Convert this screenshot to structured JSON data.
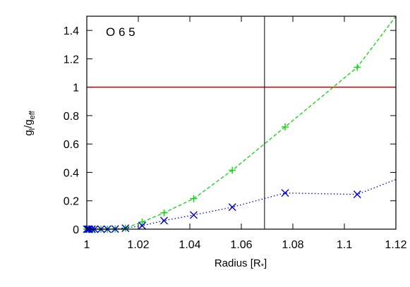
{
  "chart_data": {
    "type": "line",
    "annotation": "O 6 5",
    "xlabel": {
      "main": "Radius [R",
      "sub": "*",
      "close": "]"
    },
    "ylabel": {
      "g": "g",
      "sub1": "l",
      "slash": "/g",
      "sub2": "eff"
    },
    "xlim": [
      1.0,
      1.12
    ],
    "ylim": [
      0,
      1.5
    ],
    "x_ticks": [
      1.0,
      1.02,
      1.04,
      1.06,
      1.08,
      1.1,
      1.12
    ],
    "x_tick_labels": [
      "1",
      "1.02",
      "1.04",
      "1.06",
      "1.08",
      "1.1",
      "1.12"
    ],
    "y_ticks": [
      0,
      0.2,
      0.4,
      0.6,
      0.8,
      1.0,
      1.2,
      1.4
    ],
    "y_tick_labels": [
      "0",
      "0.2",
      "0.4",
      "0.6",
      "0.8",
      "1",
      "1.2",
      "1.4"
    ],
    "grid": false,
    "hlines": [
      {
        "y": 1.0,
        "color": "#cc0000"
      }
    ],
    "vlines": [
      {
        "x": 1.069,
        "color": "#000000"
      }
    ],
    "series": [
      {
        "color": "#00dd00",
        "marker": "plus",
        "linestyle": "dashed",
        "x": [
          1.0,
          1.0005,
          1.001,
          1.002,
          1.003,
          1.0055,
          1.008,
          1.011,
          1.015,
          1.0215,
          1.03,
          1.0415,
          1.0565,
          1.077,
          1.105
        ],
        "y": [
          0,
          0,
          0,
          0,
          0,
          0,
          0,
          0.002,
          0.008,
          0.05,
          0.115,
          0.215,
          0.415,
          0.72,
          1.14
        ],
        "line_extension": {
          "x": 1.12,
          "y": 1.5
        }
      },
      {
        "color": "#0000dd",
        "marker": "x",
        "linestyle": "dotted",
        "x": [
          1.0,
          1.0005,
          1.001,
          1.002,
          1.003,
          1.0055,
          1.008,
          1.011,
          1.015,
          1.0215,
          1.03,
          1.0415,
          1.0565,
          1.077,
          1.105
        ],
        "y": [
          0,
          0,
          0,
          0,
          0,
          0,
          0,
          0.001,
          0.007,
          0.025,
          0.06,
          0.1,
          0.155,
          0.255,
          0.245
        ],
        "line_extension": {
          "x": 1.12,
          "y": 0.35
        }
      }
    ]
  }
}
